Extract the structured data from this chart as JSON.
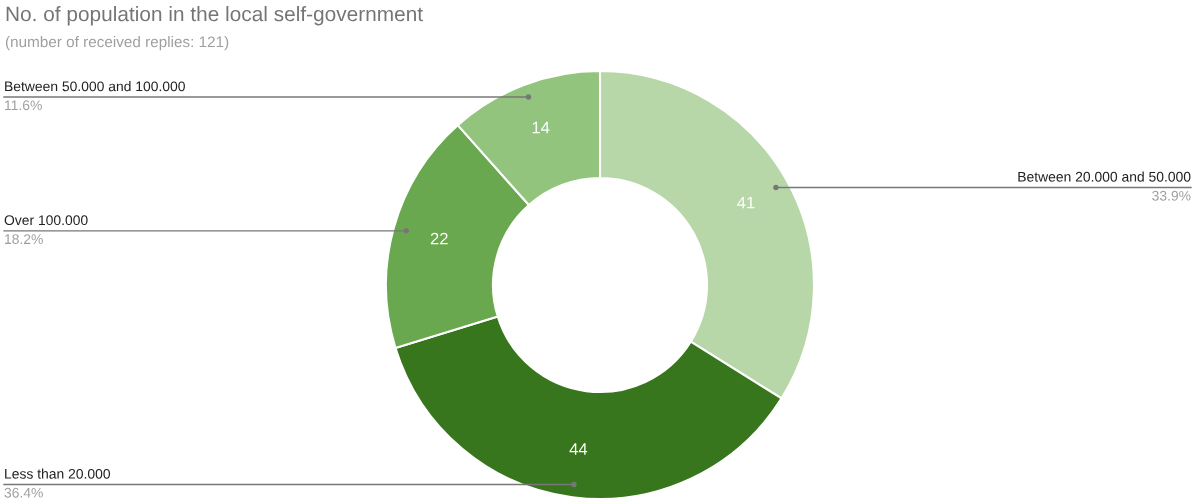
{
  "chart_data": {
    "type": "donut",
    "title": "No. of population in the local self-government",
    "subtitle": "(number of received replies: 121)",
    "categories": [
      "Between 20.000 and 50.000",
      "Less than 20.000",
      "Over 100.000",
      "Between 50.000 and 100.000"
    ],
    "values": [
      41,
      44,
      22,
      14
    ],
    "colors": [
      "#b7d7a8",
      "#38761d",
      "#6aa84f",
      "#93c47d"
    ],
    "value_labels": [
      "41",
      "44",
      "22",
      "14"
    ],
    "annotations": [
      "33.9%",
      "36.4%",
      "18.2%",
      "11.6%"
    ]
  }
}
